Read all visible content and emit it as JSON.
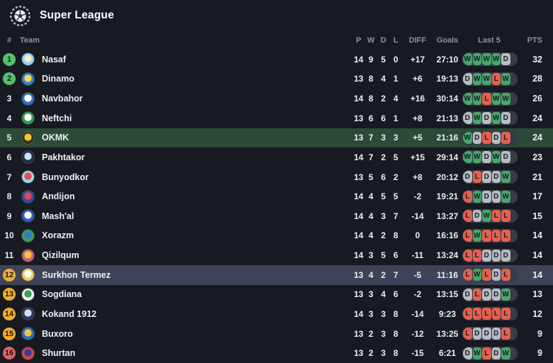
{
  "colors": {
    "page-bg": "#171b21",
    "text-primary": "#edf0f3",
    "text-muted": "#8e939d",
    "win": "#47a76b",
    "draw": "#b8bcc4",
    "loss": "#e5604f",
    "pill-bg": "#353b47",
    "badge-champions": "#53c06c",
    "badge-playoff": "#f0ae2e",
    "badge-relegation": "#e96060",
    "hl-green": "#2b4a37",
    "hl-purple": "#3e4359"
  },
  "header": {
    "title": "Super League",
    "logo_icon": "soccer-ball-wreath-icon"
  },
  "table": {
    "columns": {
      "rank": "#",
      "team": "Team",
      "played": "P",
      "wins": "W",
      "draws": "D",
      "losses": "L",
      "diff": "DIFF",
      "goals": "Goals",
      "last5": "Last 5",
      "points": "PTS"
    },
    "teams": [
      {
        "rank": 1,
        "name": "Nasaf",
        "zone": "champions",
        "highlight": null,
        "p": 14,
        "w": 9,
        "d": 5,
        "l": 0,
        "diff": "+17",
        "goals": "27:10",
        "last5": [
          "W",
          "W",
          "W",
          "W",
          "D"
        ],
        "pts": 32,
        "logo": {
          "inner": "#f5efcf",
          "outer": "#8fd4ef"
        }
      },
      {
        "rank": 2,
        "name": "Dinamo",
        "zone": "champions",
        "highlight": null,
        "p": 13,
        "w": 8,
        "d": 4,
        "l": 1,
        "diff": "+6",
        "goals": "19:13",
        "last5": [
          "D",
          "W",
          "W",
          "L",
          "W"
        ],
        "pts": 28,
        "logo": {
          "inner": "#f7d94d",
          "outer": "#2c83d6"
        }
      },
      {
        "rank": 3,
        "name": "Navbahor",
        "zone": "none",
        "highlight": null,
        "p": 14,
        "w": 8,
        "d": 2,
        "l": 4,
        "diff": "+16",
        "goals": "30:14",
        "last5": [
          "W",
          "W",
          "L",
          "W",
          "W"
        ],
        "pts": 26,
        "logo": {
          "inner": "#ffffff",
          "outer": "#2e6fc8"
        }
      },
      {
        "rank": 4,
        "name": "Neftchi",
        "zone": "none",
        "highlight": null,
        "p": 13,
        "w": 6,
        "d": 6,
        "l": 1,
        "diff": "+8",
        "goals": "21:13",
        "last5": [
          "D",
          "W",
          "D",
          "W",
          "D"
        ],
        "pts": 24,
        "logo": {
          "inner": "#ffffff",
          "outer": "#2f9e4b"
        }
      },
      {
        "rank": 5,
        "name": "OKMK",
        "zone": "none",
        "highlight": "green",
        "p": 13,
        "w": 7,
        "d": 3,
        "l": 3,
        "diff": "+5",
        "goals": "21:16",
        "last5": [
          "W",
          "D",
          "L",
          "D",
          "L"
        ],
        "pts": 24,
        "logo": {
          "inner": "#e9c832",
          "outer": "#33321f"
        }
      },
      {
        "rank": 6,
        "name": "Pakhtakor",
        "zone": "none",
        "highlight": null,
        "p": 14,
        "w": 7,
        "d": 2,
        "l": 5,
        "diff": "+15",
        "goals": "29:14",
        "last5": [
          "W",
          "W",
          "D",
          "W",
          "D"
        ],
        "pts": 23,
        "logo": {
          "inner": "#cfe4f2",
          "outer": "#1d2f52"
        }
      },
      {
        "rank": 7,
        "name": "Bunyodkor",
        "zone": "none",
        "highlight": null,
        "p": 13,
        "w": 5,
        "d": 6,
        "l": 2,
        "diff": "+8",
        "goals": "20:12",
        "last5": [
          "D",
          "L",
          "D",
          "D",
          "W"
        ],
        "pts": 21,
        "logo": {
          "inner": "#e84c55",
          "outer": "#9fd8ec"
        }
      },
      {
        "rank": 8,
        "name": "Andijon",
        "zone": "none",
        "highlight": null,
        "p": 14,
        "w": 4,
        "d": 5,
        "l": 5,
        "diff": "-2",
        "goals": "19:21",
        "last5": [
          "L",
          "W",
          "D",
          "D",
          "W"
        ],
        "pts": 17,
        "logo": {
          "inner": "#ee4053",
          "outer": "#2c4daa"
        }
      },
      {
        "rank": 9,
        "name": "Mash'al",
        "zone": "none",
        "highlight": null,
        "p": 14,
        "w": 4,
        "d": 3,
        "l": 7,
        "diff": "-14",
        "goals": "13:27",
        "last5": [
          "L",
          "D",
          "W",
          "L",
          "L"
        ],
        "pts": 15,
        "logo": {
          "inner": "#ffffff",
          "outer": "#2d5bc9"
        }
      },
      {
        "rank": 10,
        "name": "Xorazm",
        "zone": "none",
        "highlight": null,
        "p": 14,
        "w": 4,
        "d": 2,
        "l": 8,
        "diff": "0",
        "goals": "16:16",
        "last5": [
          "L",
          "W",
          "L",
          "L",
          "L"
        ],
        "pts": 14,
        "logo": {
          "inner": "#2f74d8",
          "outer": "#3da052"
        }
      },
      {
        "rank": 11,
        "name": "Qizilqum",
        "zone": "none",
        "highlight": null,
        "p": 14,
        "w": 3,
        "d": 5,
        "l": 6,
        "diff": "-11",
        "goals": "13:24",
        "last5": [
          "L",
          "L",
          "D",
          "D",
          "D"
        ],
        "pts": 14,
        "logo": {
          "inner": "#f2c53f",
          "outer": "#c9607e"
        }
      },
      {
        "rank": 12,
        "name": "Surkhon Termez",
        "zone": "playoff",
        "highlight": "purple",
        "p": 13,
        "w": 4,
        "d": 2,
        "l": 7,
        "diff": "-5",
        "goals": "11:16",
        "last5": [
          "L",
          "W",
          "L",
          "D",
          "L"
        ],
        "pts": 14,
        "logo": {
          "inner": "#ffffff",
          "outer": "#efd04e"
        }
      },
      {
        "rank": 13,
        "name": "Sogdiana",
        "zone": "playoff",
        "highlight": null,
        "p": 13,
        "w": 3,
        "d": 4,
        "l": 6,
        "diff": "-2",
        "goals": "13:15",
        "last5": [
          "D",
          "L",
          "D",
          "D",
          "W"
        ],
        "pts": 13,
        "logo": {
          "inner": "#3da052",
          "outer": "#f2f4f1"
        }
      },
      {
        "rank": 14,
        "name": "Kokand 1912",
        "zone": "playoff",
        "highlight": null,
        "p": 14,
        "w": 3,
        "d": 3,
        "l": 8,
        "diff": "-14",
        "goals": "9:23",
        "last5": [
          "L",
          "L",
          "L",
          "L",
          "L"
        ],
        "pts": 12,
        "logo": {
          "inner": "#d7dde8",
          "outer": "#2c3a6b"
        }
      },
      {
        "rank": 15,
        "name": "Buxoro",
        "zone": "playoff",
        "highlight": null,
        "p": 13,
        "w": 2,
        "d": 3,
        "l": 8,
        "diff": "-12",
        "goals": "13:25",
        "last5": [
          "L",
          "D",
          "D",
          "D",
          "L"
        ],
        "pts": 9,
        "logo": {
          "inner": "#f2c53f",
          "outer": "#2e6fc8"
        }
      },
      {
        "rank": 16,
        "name": "Shurtan",
        "zone": "relegation",
        "highlight": null,
        "p": 13,
        "w": 2,
        "d": 3,
        "l": 8,
        "diff": "-15",
        "goals": "6:21",
        "last5": [
          "D",
          "W",
          "L",
          "D",
          "W"
        ],
        "pts": 9,
        "logo": {
          "inner": "#31409a",
          "outer": "#d94350"
        }
      }
    ]
  }
}
